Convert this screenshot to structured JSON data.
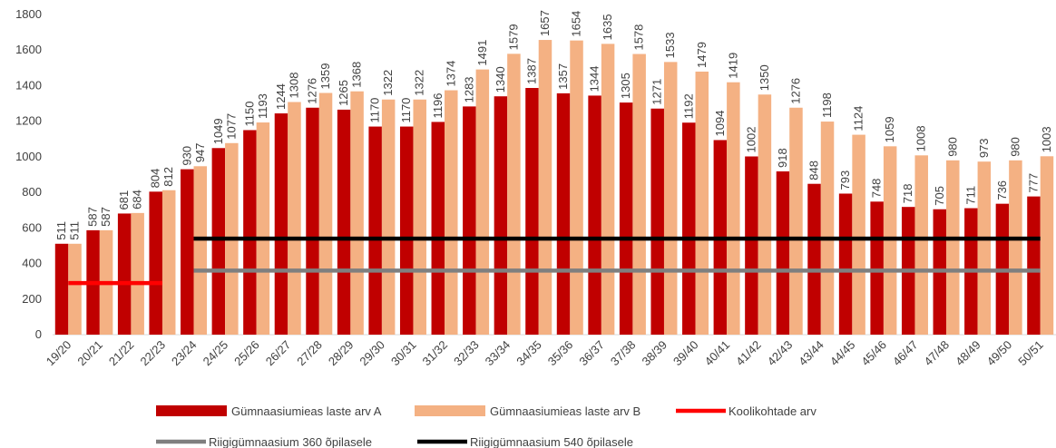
{
  "chart_data": {
    "type": "bar",
    "categories": [
      "19/20",
      "20/21",
      "21/22",
      "22/23",
      "23/24",
      "24/25",
      "25/26",
      "26/27",
      "27/28",
      "28/29",
      "29/30",
      "30/31",
      "31/32",
      "32/33",
      "33/34",
      "34/35",
      "35/36",
      "36/37",
      "37/38",
      "38/39",
      "39/40",
      "40/41",
      "41/42",
      "42/43",
      "43/44",
      "44/45",
      "45/46",
      "46/47",
      "47/48",
      "48/49",
      "49/50",
      "50/51"
    ],
    "series": [
      {
        "name": "Gümnaasiumieas laste arv A",
        "type": "bar",
        "color": "#c00000",
        "values": [
          511,
          587,
          681,
          804,
          930,
          1049,
          1150,
          1244,
          1276,
          1265,
          1170,
          1170,
          1196,
          1283,
          1340,
          1387,
          1357,
          1344,
          1305,
          1271,
          1192,
          1094,
          1002,
          918,
          848,
          793,
          748,
          718,
          705,
          711,
          736,
          777
        ]
      },
      {
        "name": "Gümnaasiumieas laste arv B",
        "type": "bar",
        "color": "#f4b183",
        "values": [
          511,
          587,
          684,
          812,
          947,
          1077,
          1193,
          1308,
          1359,
          1368,
          1322,
          1322,
          1374,
          1491,
          1579,
          1657,
          1654,
          1635,
          1578,
          1533,
          1479,
          1419,
          1350,
          1276,
          1198,
          1124,
          1059,
          1008,
          980,
          973,
          980,
          1003
        ]
      },
      {
        "name": "Koolikohtade arv",
        "type": "line",
        "color": "#ff0000",
        "values": [
          290,
          290,
          290,
          290,
          null,
          null,
          null,
          null,
          null,
          null,
          null,
          null,
          null,
          null,
          null,
          null,
          null,
          null,
          null,
          null,
          null,
          null,
          null,
          null,
          null,
          null,
          null,
          null,
          null,
          null,
          null,
          null
        ]
      },
      {
        "name": "Riigigümnaasium 360 õpilasele",
        "type": "line",
        "color": "#7f7f7f",
        "values": [
          null,
          null,
          null,
          null,
          360,
          360,
          360,
          360,
          360,
          360,
          360,
          360,
          360,
          360,
          360,
          360,
          360,
          360,
          360,
          360,
          360,
          360,
          360,
          360,
          360,
          360,
          360,
          360,
          360,
          360,
          360,
          360
        ]
      },
      {
        "name": "Riigigümnaasium 540 õpilasele",
        "type": "line",
        "color": "#000000",
        "values": [
          null,
          null,
          null,
          null,
          540,
          540,
          540,
          540,
          540,
          540,
          540,
          540,
          540,
          540,
          540,
          540,
          540,
          540,
          540,
          540,
          540,
          540,
          540,
          540,
          540,
          540,
          540,
          540,
          540,
          540,
          540,
          540
        ]
      }
    ],
    "ylim": [
      0,
      1800
    ],
    "yticks": [
      0,
      200,
      400,
      600,
      800,
      1000,
      1200,
      1400,
      1600,
      1800
    ],
    "grid": false
  }
}
